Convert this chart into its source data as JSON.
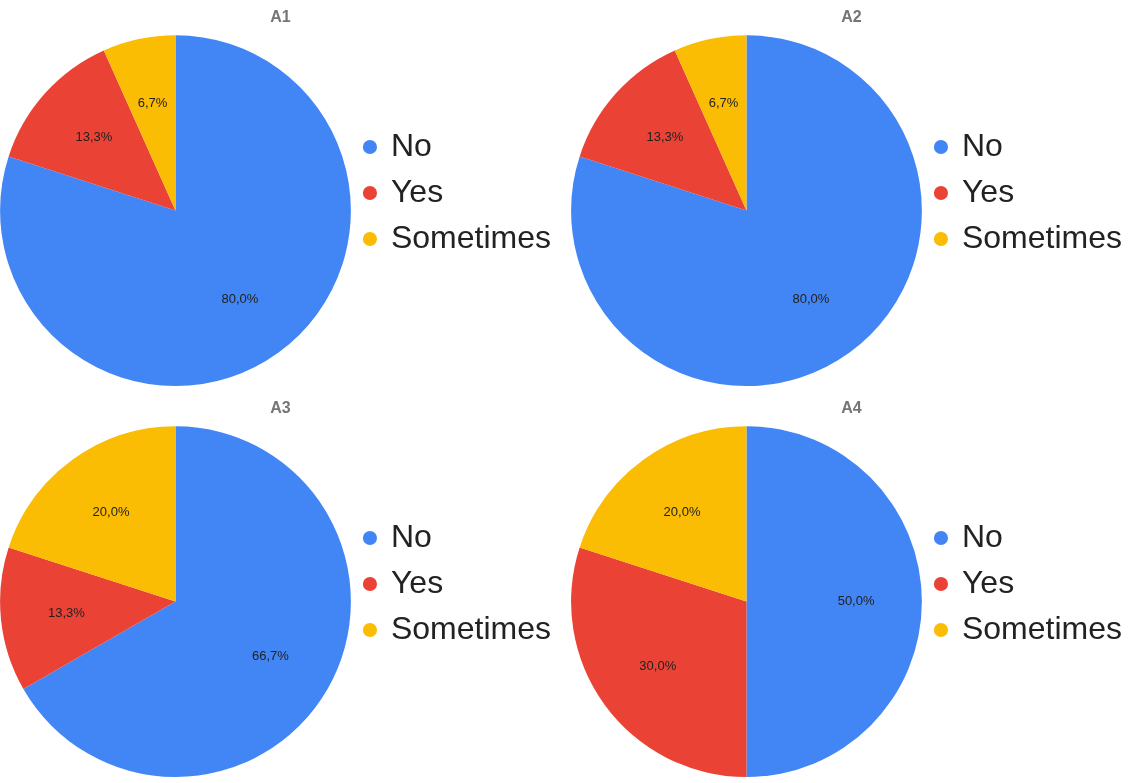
{
  "chart_data": [
    {
      "type": "pie",
      "title": "A1",
      "categories": [
        "No",
        "Yes",
        "Sometimes"
      ],
      "values": [
        80.0,
        13.3,
        6.7
      ],
      "colors": [
        "#4285f4",
        "#ea4335",
        "#fbbc04"
      ],
      "value_labels": [
        "80,0%",
        "13,3%",
        "6,7%"
      ],
      "legend": "right"
    },
    {
      "type": "pie",
      "title": "A2",
      "categories": [
        "No",
        "Yes",
        "Sometimes"
      ],
      "values": [
        80.0,
        13.3,
        6.7
      ],
      "colors": [
        "#4285f4",
        "#ea4335",
        "#fbbc04"
      ],
      "value_labels": [
        "80,0%",
        "13,3%",
        "6,7%"
      ],
      "legend": "right"
    },
    {
      "type": "pie",
      "title": "A3",
      "categories": [
        "No",
        "Yes",
        "Sometimes"
      ],
      "values": [
        66.7,
        13.3,
        20.0
      ],
      "colors": [
        "#4285f4",
        "#ea4335",
        "#fbbc04"
      ],
      "value_labels": [
        "66,7%",
        "13,3%",
        "20,0%"
      ],
      "legend": "right"
    },
    {
      "type": "pie",
      "title": "A4",
      "categories": [
        "No",
        "Yes",
        "Sometimes"
      ],
      "values": [
        50.0,
        30.0,
        20.0
      ],
      "colors": [
        "#4285f4",
        "#ea4335",
        "#fbbc04"
      ],
      "value_labels": [
        "50,0%",
        "30,0%",
        "20,0%"
      ],
      "legend": "right"
    }
  ]
}
